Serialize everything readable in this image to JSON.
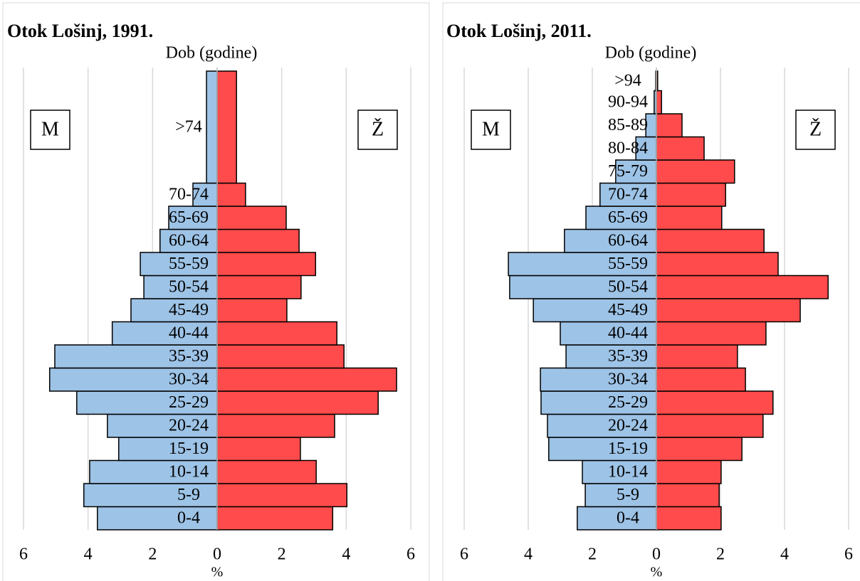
{
  "chart_data": [
    {
      "type": "bar",
      "title": "Otok Lošinj, 1991.",
      "y_label": "Dob (godine)",
      "x_label": "%",
      "categories": [
        "0-4",
        "5-9",
        "10-14",
        "15-19",
        "20-24",
        "25-29",
        "30-34",
        "35-39",
        "40-44",
        "45-49",
        "50-54",
        "55-59",
        "60-64",
        "65-69",
        "70-74",
        ">74"
      ],
      "series": [
        {
          "name": "M",
          "color": "#9dc3e6",
          "values": [
            -3.71,
            -4.13,
            -3.95,
            -3.05,
            -3.4,
            -4.35,
            -5.19,
            -5.03,
            -3.25,
            -2.67,
            -2.27,
            -2.38,
            -1.77,
            -1.5,
            -0.75,
            -0.33
          ]
        },
        {
          "name": "Ž",
          "color": "#ff4b4b",
          "values": [
            3.58,
            4.02,
            3.07,
            2.58,
            3.64,
            4.99,
            5.56,
            3.93,
            3.71,
            2.16,
            2.6,
            3.05,
            2.54,
            2.14,
            0.88,
            0.6
          ]
        }
      ],
      "xlim": [
        -6,
        6
      ],
      "xticks": [
        {
          "value": -6,
          "label": "6"
        },
        {
          "value": -4,
          "label": "4"
        },
        {
          "value": -2,
          "label": "2"
        },
        0,
        2,
        4,
        6
      ],
      "grid": true
    },
    {
      "type": "bar",
      "title": "Otok Lošinj, 2011.",
      "y_label": "Dob (godine)",
      "x_label": "%",
      "categories": [
        "0-4",
        "5-9",
        "10-14",
        "15-19",
        "20-24",
        "25-29",
        "30-34",
        "35-39",
        "40-44",
        "45-49",
        "50-54",
        "55-59",
        "60-64",
        "65-69",
        "70-74",
        "75-79",
        "80-84",
        "85-89",
        "90-94",
        ">94"
      ],
      "series": [
        {
          "name": "M",
          "color": "#9dc3e6",
          "values": [
            -2.47,
            -2.22,
            -2.31,
            -3.36,
            -3.4,
            -3.6,
            -3.62,
            -2.82,
            -3.0,
            -3.84,
            -4.58,
            -4.62,
            -2.87,
            -2.2,
            -1.76,
            -1.27,
            -0.64,
            -0.33,
            -0.07,
            -0.02
          ]
        },
        {
          "name": "Ž",
          "color": "#ff4b4b",
          "values": [
            2.02,
            1.96,
            2.02,
            2.67,
            3.33,
            3.64,
            2.78,
            2.53,
            3.42,
            4.49,
            5.36,
            3.8,
            3.36,
            2.04,
            2.16,
            2.44,
            1.49,
            0.8,
            0.16,
            0.04
          ]
        }
      ],
      "xlim": [
        -6,
        6
      ],
      "xticks": [
        {
          "value": -6,
          "label": "6"
        },
        {
          "value": -4,
          "label": "4"
        },
        {
          "value": -2,
          "label": "2"
        },
        0,
        2,
        4,
        6
      ],
      "grid": true
    }
  ]
}
